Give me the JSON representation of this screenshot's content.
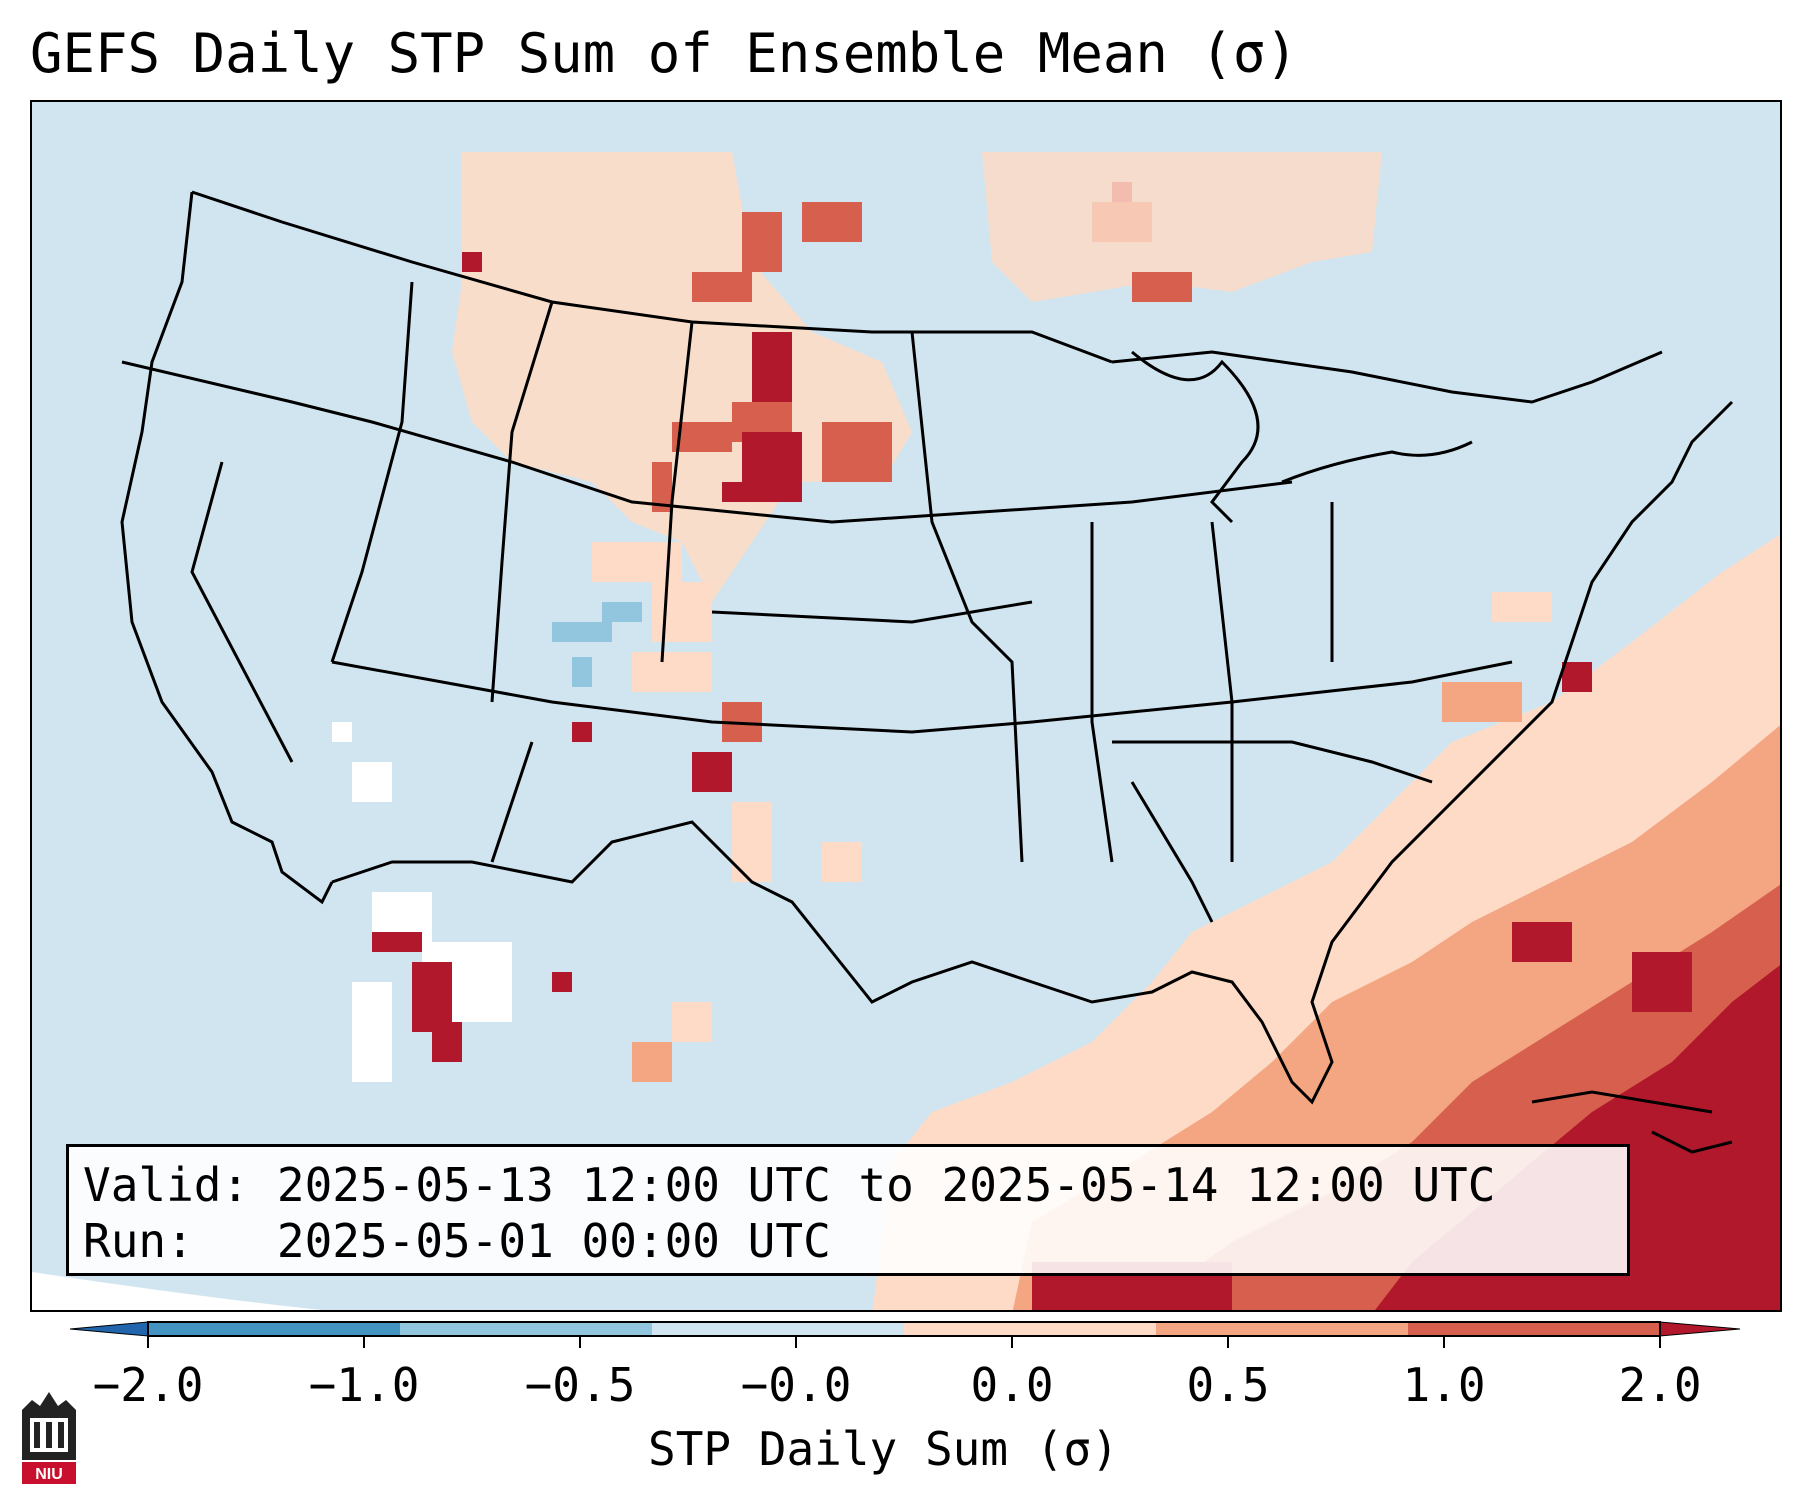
{
  "title": "GEFS Daily STP Sum of Ensemble Mean (σ)",
  "info": {
    "valid_label": "Valid:",
    "valid_value": "2025-05-13 12:00 UTC to 2025-05-14 12:00 UTC",
    "run_label": "Run:",
    "run_value": "2025-05-01 00:00 UTC"
  },
  "colorbar": {
    "label": "STP Daily Sum (σ)",
    "ticks": [
      "−2.0",
      "−1.0",
      "−0.5",
      "−0.0",
      "0.0",
      "0.5",
      "1.0",
      "2.0"
    ],
    "colors": [
      "#2166ac",
      "#4393c3",
      "#92c5de",
      "#d1e5f0",
      "#fddbc7",
      "#f4a582",
      "#d6604d",
      "#b2182b"
    ],
    "extend": "both"
  },
  "logo_text": "NIU",
  "legend_colors": {
    "background": "#d1e5f0",
    "weak_positive": "#fddbc7",
    "moderate_positive": "#f4a582",
    "strong_positive": "#d6604d",
    "very_strong_positive": "#b2182b",
    "weak_negative": "#92c5de",
    "neutral": "#ffffff"
  },
  "map_regions": [
    "northern-plains-anomaly",
    "southeast-gulf-anomaly",
    "atlantic-anomaly",
    "mexico-anomaly"
  ]
}
